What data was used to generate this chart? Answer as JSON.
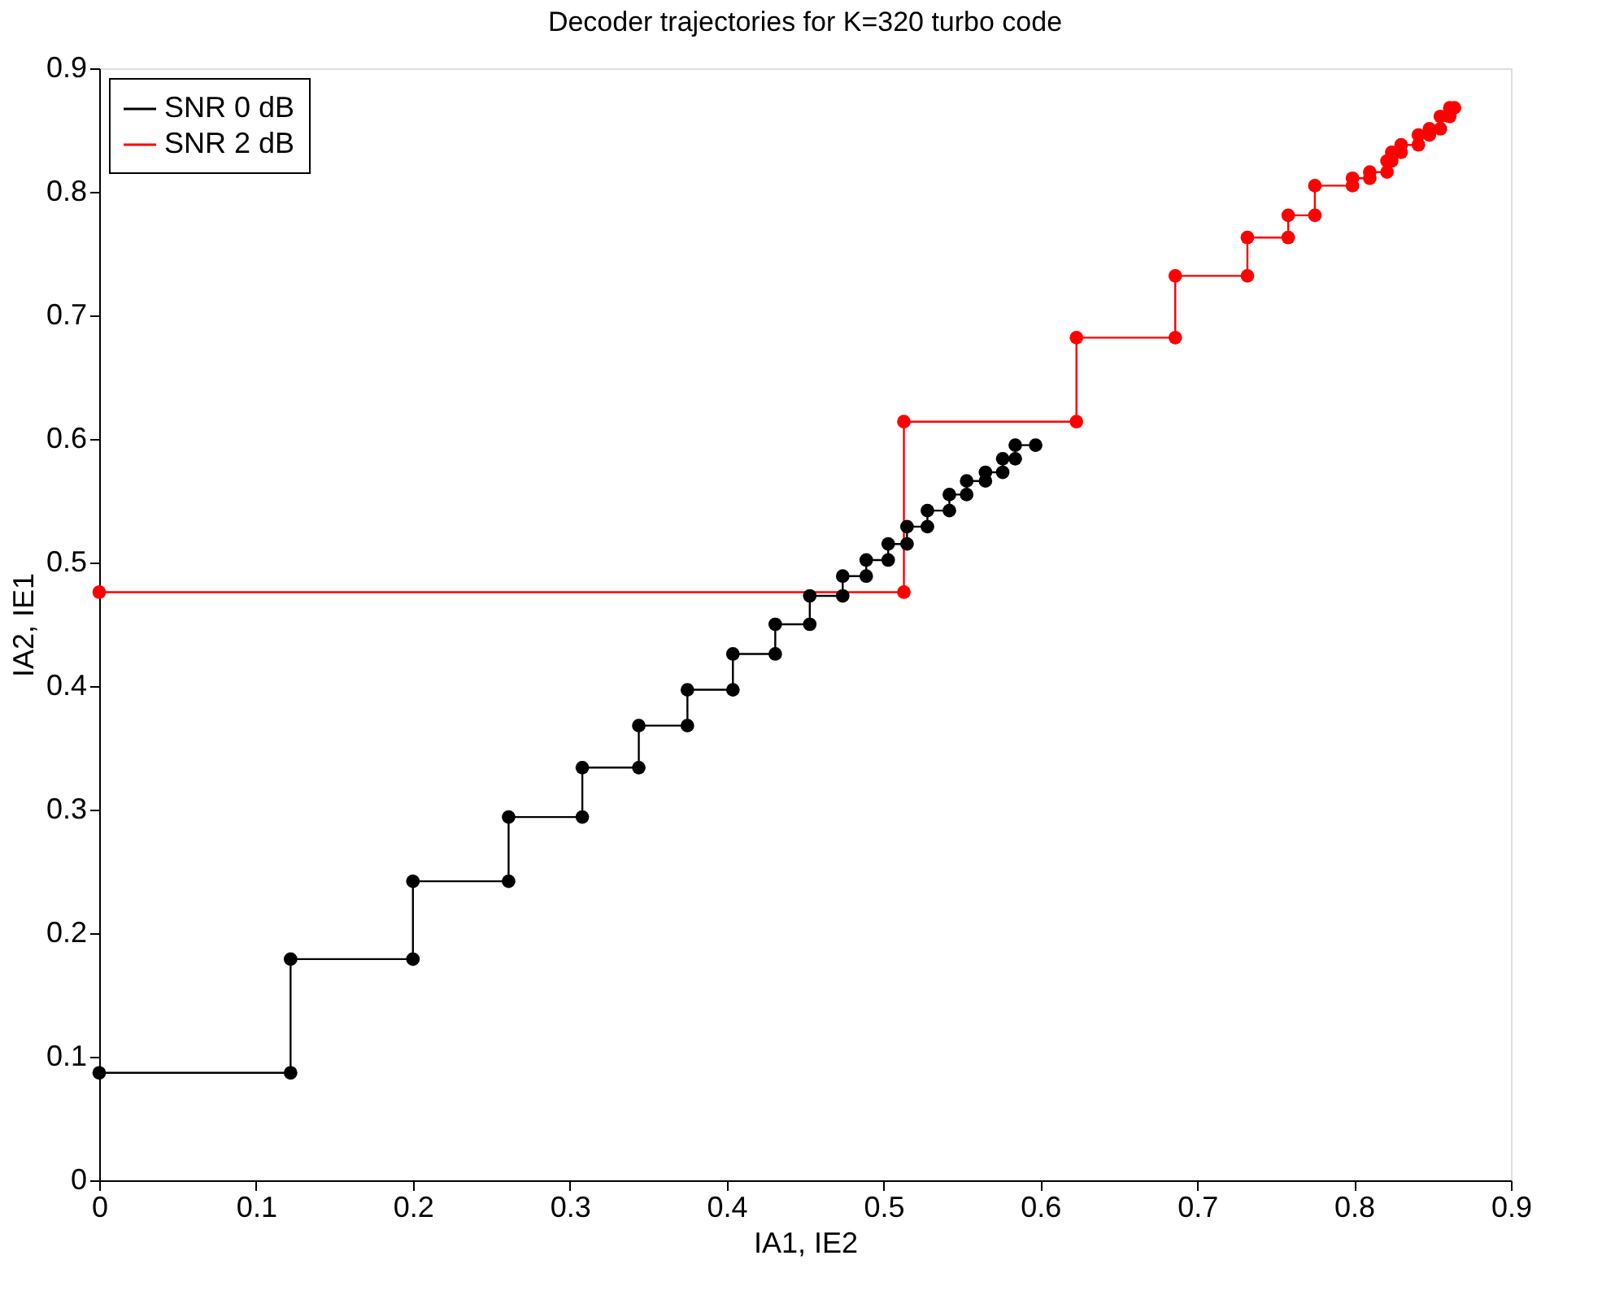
{
  "chart_data": {
    "type": "line",
    "title": "Decoder trajectories for K=320 turbo code",
    "xlabel": "IA1, IE2",
    "ylabel": "IA2, IE1",
    "xlim": [
      0,
      0.9
    ],
    "ylim": [
      0,
      0.9
    ],
    "xticks": [
      0,
      0.1,
      0.2,
      0.3,
      0.4,
      0.5,
      0.6,
      0.7,
      0.8,
      0.9
    ],
    "yticks": [
      0,
      0.1,
      0.2,
      0.3,
      0.4,
      0.5,
      0.6,
      0.7,
      0.8,
      0.9
    ],
    "grid": false,
    "legend": "top left",
    "marker": "circle",
    "line_style": "solid",
    "series": [
      {
        "name": "SNR 0 dB",
        "color": "#000000",
        "x": [
          0,
          0.122,
          0.122,
          0.2,
          0.2,
          0.261,
          0.261,
          0.308,
          0.308,
          0.344,
          0.344,
          0.375,
          0.375,
          0.404,
          0.404,
          0.431,
          0.431,
          0.453,
          0.453,
          0.474,
          0.474,
          0.489,
          0.489,
          0.503,
          0.503,
          0.515,
          0.515,
          0.528,
          0.528,
          0.542,
          0.542,
          0.553,
          0.553,
          0.565,
          0.565,
          0.576,
          0.576,
          0.584,
          0.584,
          0.597
        ],
        "values": [
          0.087,
          0.087,
          0.179,
          0.179,
          0.242,
          0.242,
          0.294,
          0.294,
          0.334,
          0.334,
          0.368,
          0.368,
          0.397,
          0.397,
          0.426,
          0.426,
          0.45,
          0.45,
          0.473,
          0.473,
          0.489,
          0.489,
          0.502,
          0.502,
          0.515,
          0.515,
          0.529,
          0.529,
          0.542,
          0.542,
          0.555,
          0.555,
          0.566,
          0.566,
          0.573,
          0.573,
          0.584,
          0.584,
          0.595,
          0.595
        ]
      },
      {
        "name": "SNR 2 dB",
        "color": "#ff0000",
        "x": [
          0,
          0.513,
          0.513,
          0.623,
          0.623,
          0.686,
          0.686,
          0.732,
          0.732,
          0.758,
          0.758,
          0.775,
          0.775,
          0.799,
          0.799,
          0.81,
          0.81,
          0.821,
          0.821,
          0.824,
          0.824,
          0.83,
          0.83,
          0.841,
          0.841,
          0.848,
          0.848,
          0.855,
          0.855,
          0.861,
          0.861,
          0.864
        ],
        "values": [
          0.476,
          0.476,
          0.614,
          0.614,
          0.682,
          0.682,
          0.732,
          0.732,
          0.763,
          0.763,
          0.781,
          0.781,
          0.805,
          0.805,
          0.811,
          0.811,
          0.816,
          0.816,
          0.825,
          0.825,
          0.832,
          0.832,
          0.838,
          0.838,
          0.846,
          0.846,
          0.851,
          0.851,
          0.861,
          0.861,
          0.868,
          0.868
        ]
      }
    ]
  }
}
